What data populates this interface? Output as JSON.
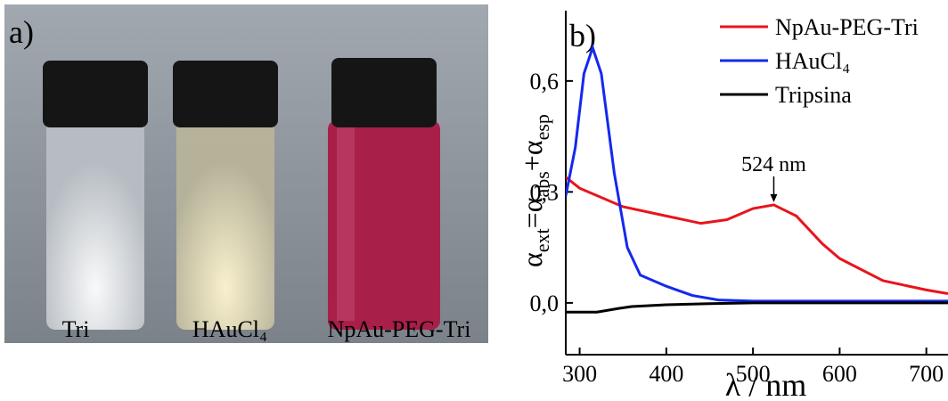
{
  "photo": {
    "panel_label": "a)",
    "labels": [
      "Tri",
      "HAuCl₄",
      "NpAu-PEG-Tri"
    ]
  },
  "chart_data": {
    "type": "line",
    "panel_label": "b)",
    "xlabel": "λ / nm",
    "ylabel_parts": [
      "α",
      "ext",
      "=α",
      "abs",
      "+α",
      "esp"
    ],
    "annotation": "524 nm",
    "xlim": [
      284,
      725
    ],
    "xticks": [
      300,
      400,
      500,
      600,
      700
    ],
    "ylim": [
      -0.14,
      0.79
    ],
    "yticks": [
      {
        "value": 0,
        "label": "0,0"
      },
      {
        "value": 0.3,
        "label": "0,3"
      },
      {
        "value": 0.6,
        "label": "0,6"
      }
    ],
    "legend": "upper right",
    "series": [
      {
        "name": "NpAu-PEG-Tri",
        "color": "#e8141c",
        "x": [
          284,
          300,
          350,
          400,
          440,
          470,
          500,
          524,
          550,
          580,
          600,
          650,
          700,
          725
        ],
        "values": [
          0.34,
          0.31,
          0.26,
          0.235,
          0.215,
          0.225,
          0.255,
          0.265,
          0.235,
          0.16,
          0.12,
          0.06,
          0.035,
          0.025
        ]
      },
      {
        "name": "HAuCl₄",
        "color": "#1428f0",
        "x": [
          284,
          295,
          305,
          315,
          325,
          340,
          355,
          370,
          400,
          430,
          460,
          500,
          600,
          725
        ],
        "values": [
          0.29,
          0.42,
          0.62,
          0.69,
          0.62,
          0.35,
          0.15,
          0.075,
          0.045,
          0.02,
          0.008,
          0.005,
          0.005,
          0.005
        ]
      },
      {
        "name": "Tripsina",
        "color": "#000000",
        "x": [
          284,
          320,
          345,
          360,
          400,
          450,
          500,
          600,
          725
        ],
        "values": [
          -0.025,
          -0.025,
          -0.015,
          -0.01,
          -0.005,
          -0.002,
          0,
          0,
          0
        ]
      }
    ]
  }
}
